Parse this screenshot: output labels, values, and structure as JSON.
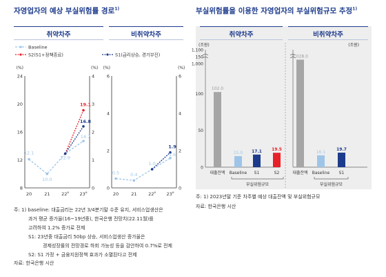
{
  "left": {
    "title": "자영업자의 예상 부실위험률 경로",
    "title_note": "1)",
    "panel_vulnerable": "취약차주",
    "panel_nonvulnerable": "비취약차주",
    "notes": [
      "주: 1) baseline: 대출금리는 22년 3/4분기말 수준 유지, 서비스업생산은",
      "과거 평균 증가율(16~19년중), 한국은행 전망치(22.11월)를",
      "고려하여 1.2% 증가로 전제",
      "S1: 23년중 대출금리 50bp 상승, 서비스업생산 증가율은",
      "경제성장률의 전망경로 하회 가능성 등을 감안하여 0.7%로 전제",
      "S2: S1 가정 + 금융지원정책 효과가 소멸된다고 전제"
    ],
    "source": "자료: 한국은행 시산"
  },
  "right": {
    "title": "부실위험률을 이용한 자영업자의 부실위험규모 추정",
    "title_note": "1)",
    "panel_vulnerable": "취약차주",
    "panel_nonvulnerable": "비취약차주",
    "note": "주: 1) 2023년말 기준 차주별 예상 대출잔액 및 부실위험규모",
    "source": "자료: 한국은행 시산"
  },
  "colors": {
    "navy": "#1d3b8c",
    "red": "#e8202a",
    "light_blue": "#9ec5e8",
    "gray": "#a6a6a6",
    "panel_bg": "#eeeeee"
  },
  "chart_data": [
    {
      "type": "line",
      "panel": "취약차주",
      "categories": [
        "20",
        "21",
        "22e",
        "23e"
      ],
      "y_unit_left": "(%)",
      "y_unit_right": "(%)",
      "ylim": [
        8,
        24
      ],
      "yticks": [
        8,
        12,
        16,
        20,
        24
      ],
      "ylim_right": [
        0,
        4
      ],
      "yticks_right": [
        0,
        1,
        2,
        3,
        4
      ],
      "grid": false,
      "legend": "top-left",
      "series": [
        {
          "name": "Baseline",
          "style": "dashed",
          "color": "#9ec5e8",
          "values": [
            12.1,
            10.0,
            12.9,
            14.7
          ]
        },
        {
          "name": "S2(S1+정책종료)",
          "style": "dotted",
          "color": "#e8202a",
          "values": [
            null,
            null,
            12.9,
            19.1
          ]
        },
        {
          "name": "",
          "style": "dotted",
          "color": "#1d3b8c",
          "values": [
            null,
            null,
            12.9,
            16.8
          ]
        }
      ],
      "data_labels": [
        "12.1",
        "10.0",
        "12.9",
        "14.7",
        "19.1",
        "16.8"
      ]
    },
    {
      "type": "line",
      "panel": "비취약차주",
      "categories": [
        "20",
        "21",
        "22e",
        "23e"
      ],
      "y_unit_left": "(%)",
      "y_unit_right": "(%)",
      "ylim": [
        0,
        6
      ],
      "yticks": [
        0,
        2,
        4,
        6
      ],
      "ylim_right": [
        0,
        6
      ],
      "yticks_right": [
        0,
        2,
        4,
        6
      ],
      "grid": false,
      "legend": "top-left",
      "series": [
        {
          "name": "",
          "style": "dashed",
          "color": "#9ec5e8",
          "values": [
            0.5,
            0.4,
            1.0,
            1.6
          ]
        },
        {
          "name": "S1(금리상승, 경기부진)",
          "style": "dotted",
          "color": "#1d3b8c",
          "values": [
            null,
            null,
            1.0,
            1.9
          ]
        }
      ],
      "data_labels": [
        "0.5",
        "0.4",
        "1.0",
        "1.6",
        "1.9"
      ]
    },
    {
      "type": "bar",
      "panel": "취약차주",
      "unit": "(조원)",
      "categories": [
        "대출잔액",
        "Baseline",
        "S1",
        "S2"
      ],
      "group_label": "부실위험규모",
      "values": [
        102.0,
        15.0,
        17.1,
        19.5
      ],
      "colors": [
        "#a6a6a6",
        "#9ec5e8",
        "#1d3b8c",
        "#e8202a"
      ],
      "yticks": [
        0,
        50,
        100,
        150,
        1000,
        1100
      ],
      "broken_axis": true,
      "ylim": [
        0,
        1100
      ]
    },
    {
      "type": "bar",
      "panel": "비취약차주",
      "unit": "(조원)",
      "categories": [
        "대출잔액",
        "Baseline",
        "S1"
      ],
      "group_label": "부실위험규모",
      "values": [
        1028.0,
        16.1,
        19.7
      ],
      "colors": [
        "#a6a6a6",
        "#9ec5e8",
        "#1d3b8c"
      ],
      "yticks": [
        0,
        50,
        100,
        150,
        1000,
        1100
      ],
      "broken_axis": true,
      "ylim": [
        0,
        1100
      ]
    }
  ]
}
